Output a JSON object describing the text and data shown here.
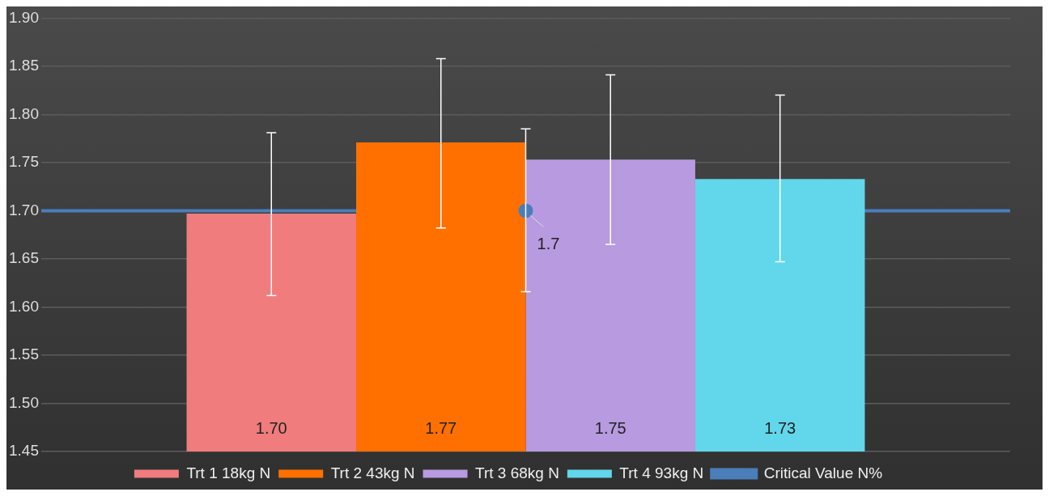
{
  "chart_data": {
    "type": "bar",
    "categories": [
      null
    ],
    "series": [
      {
        "name": "Trt 1 18kg N",
        "color": "#f07c7e",
        "values": [
          1.697
        ],
        "errors": [
          [
            1.612,
            1.781
          ]
        ],
        "value_labels": [
          "1.70"
        ]
      },
      {
        "name": "Trt 2 43kg N",
        "color": "#ff7000",
        "values": [
          1.771
        ],
        "errors": [
          [
            1.682,
            1.858
          ]
        ],
        "value_labels": [
          "1.77"
        ]
      },
      {
        "name": "Trt 3 68kg N",
        "color": "#b79ae0",
        "values": [
          1.753
        ],
        "errors": [
          [
            1.665,
            1.841
          ]
        ],
        "value_labels": [
          "1.75"
        ]
      },
      {
        "name": "Trt 4 93kg N",
        "color": "#62d6ea",
        "values": [
          1.733
        ],
        "errors": [
          [
            1.647,
            1.82
          ]
        ],
        "value_labels": [
          "1.73"
        ]
      },
      {
        "name": "Critical Value N%",
        "type": "line",
        "color": "#4a7ebb",
        "marker": "circle",
        "values": [
          1.7
        ],
        "errors": [
          [
            1.616,
            1.785
          ]
        ],
        "value_labels": [
          "1.7"
        ]
      }
    ],
    "ylim": [
      1.45,
      1.9
    ],
    "yticks": [
      {
        "value": 1.45,
        "label": "1.45"
      },
      {
        "value": 1.5,
        "label": "1.50"
      },
      {
        "value": 1.55,
        "label": "1.55"
      },
      {
        "value": 1.6,
        "label": "1.60"
      },
      {
        "value": 1.65,
        "label": "1.65"
      },
      {
        "value": 1.7,
        "label": "1.70"
      },
      {
        "value": 1.75,
        "label": "1.75"
      },
      {
        "value": 1.8,
        "label": "1.80"
      },
      {
        "value": 1.85,
        "label": "1.85"
      },
      {
        "value": 1.9,
        "label": "1.90"
      }
    ],
    "ref_lines": [
      {
        "axis": "y",
        "value": 1.7,
        "color": "#4a7ebb"
      }
    ],
    "grid": "y",
    "legend": "bottom"
  }
}
